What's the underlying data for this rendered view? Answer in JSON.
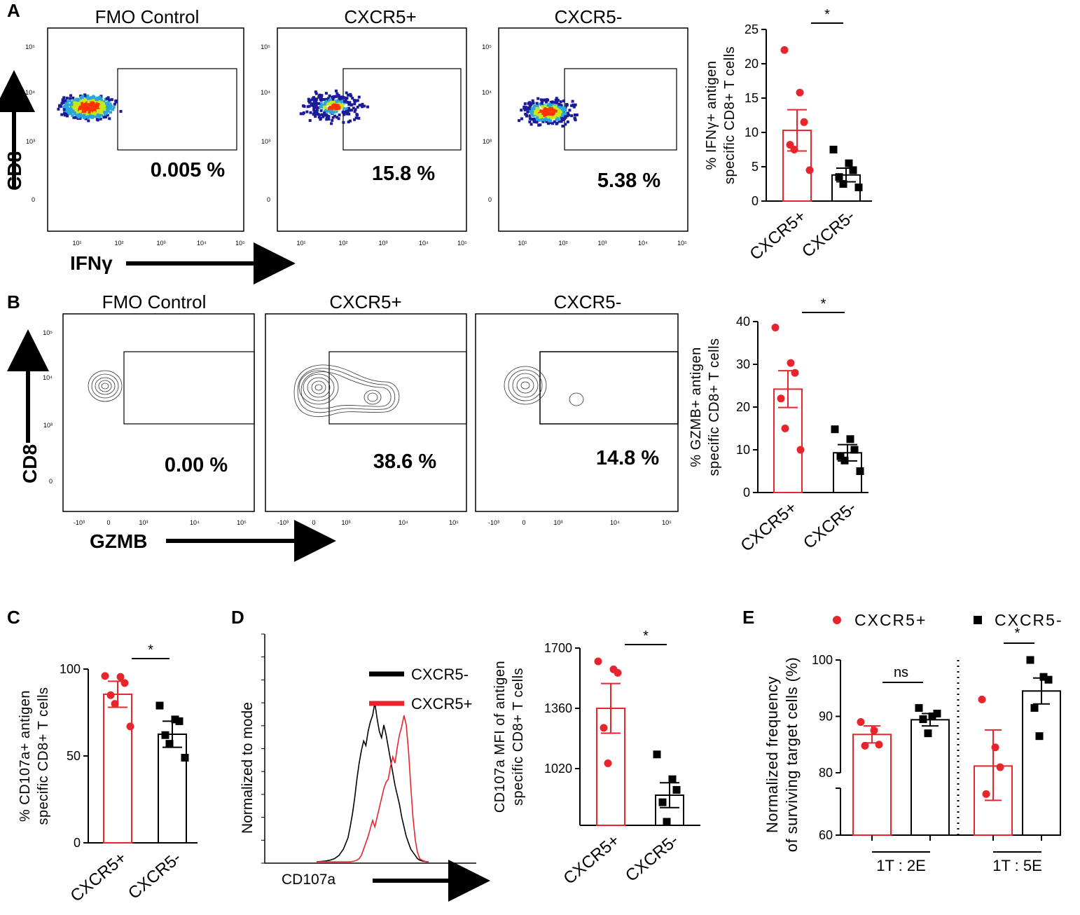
{
  "colors": {
    "red": "#e8252c",
    "black": "#000000",
    "density_low": "#1a1a9a",
    "density_mid": "#2aa7d8",
    "density_hi": "#c8e81a",
    "density_top": "#ff3300"
  },
  "panels": {
    "A": {
      "letter": "A",
      "y_axis_label": "CD8",
      "x_axis_label": "IFNγ",
      "y_ticks": [
        "10⁵",
        "10⁴",
        "10³",
        "0"
      ],
      "x_ticks": [
        "10¹",
        "10²",
        "10³",
        "10⁴",
        "10⁵"
      ],
      "plots": [
        {
          "title": "FMO Control",
          "percent": "0.005 %"
        },
        {
          "title": "CXCR5+",
          "percent": "15.8 %"
        },
        {
          "title": "CXCR5-",
          "percent": "5.38 %"
        }
      ]
    },
    "B": {
      "letter": "B",
      "y_axis_label": "CD8",
      "x_axis_label": "GZMB",
      "y_ticks": [
        "10⁵",
        "10⁴",
        "10³",
        "0"
      ],
      "x_ticks": [
        "-10³",
        "0",
        "10³",
        "10⁴",
        "10⁵"
      ],
      "plots": [
        {
          "title": "FMO Control",
          "percent": "0.00 %"
        },
        {
          "title": "CXCR5+",
          "percent": "38.6 %"
        },
        {
          "title": "CXCR5-",
          "percent": "14.8 %"
        }
      ]
    },
    "C": {
      "letter": "C"
    },
    "D": {
      "letter": "D",
      "hist_ylabel": "Normalized to mode",
      "hist_xlabel": "CD107a",
      "legend": [
        "CXCR5-",
        "CXCR5+"
      ]
    },
    "E": {
      "letter": "E",
      "legend": [
        "CXCR5+",
        "CXCR5-"
      ],
      "group_labels": [
        "1T : 2E",
        "1T : 5E"
      ],
      "ns_label": "ns"
    }
  },
  "chart_data": [
    {
      "id": "A-bar",
      "type": "bar",
      "categories": [
        "CXCR5+",
        "CXCR5-"
      ],
      "ylabel_lines": [
        "% IFNγ+ antigen",
        "specific CD8+ T cells"
      ],
      "ylim": [
        0,
        25
      ],
      "yticks": [
        0,
        5,
        10,
        15,
        20,
        25
      ],
      "means": [
        10.3,
        3.8
      ],
      "sem": [
        3.0,
        1.0
      ],
      "points": [
        [
          22.0,
          15.8,
          11.5,
          8.2,
          7.5,
          4.5
        ],
        [
          7.5,
          5.5,
          4.5,
          3.5,
          2.5,
          2.0
        ]
      ],
      "significance": "*"
    },
    {
      "id": "B-bar",
      "type": "bar",
      "categories": [
        "CXCR5+",
        "CXCR5-"
      ],
      "ylabel_lines": [
        "% GZMB+ antigen",
        "specific CD8+ T cells"
      ],
      "ylim": [
        0,
        40
      ],
      "yticks": [
        0,
        10,
        20,
        30,
        40
      ],
      "means": [
        24.2,
        9.3
      ],
      "sem": [
        4.3,
        1.9
      ],
      "points": [
        [
          38.6,
          30.3,
          28.0,
          22.0,
          15.0,
          10.0
        ],
        [
          14.8,
          12.5,
          10.0,
          8.5,
          7.5,
          5.0
        ]
      ],
      "significance": "*"
    },
    {
      "id": "C-bar",
      "type": "bar",
      "categories": [
        "CXCR5+",
        "CXCR5-"
      ],
      "ylabel_lines": [
        "% CD107a+ antigen",
        "specific CD8+ T cells"
      ],
      "ylim": [
        0,
        100
      ],
      "yticks": [
        0,
        50,
        100
      ],
      "means": [
        85.5,
        62.5
      ],
      "sem": [
        7.5,
        7.5
      ],
      "points": [
        [
          96.0,
          95.5,
          92.0,
          85.0,
          80.0,
          67.0
        ],
        [
          79.0,
          71.0,
          70.0,
          62.0,
          57.0,
          49.0
        ]
      ],
      "significance": "*"
    },
    {
      "id": "D-hist",
      "type": "line",
      "xlabel": "CD107a",
      "ylabel": "Normalized to mode",
      "series": [
        {
          "name": "CXCR5-",
          "x": [
            0,
            4,
            8,
            12,
            16,
            20,
            24,
            28,
            30,
            32,
            34,
            36,
            38,
            40,
            42,
            44,
            46,
            48,
            50,
            52,
            54,
            56,
            58,
            60,
            62,
            64,
            66,
            68,
            70,
            72,
            74,
            76,
            78,
            80,
            82,
            84,
            86,
            88,
            90,
            92,
            94,
            96,
            98,
            100
          ],
          "y": [
            0,
            0.2,
            0.5,
            1,
            2,
            4,
            8,
            15,
            22,
            30,
            40,
            52,
            62,
            70,
            76,
            73,
            82,
            88,
            92,
            100,
            90,
            82,
            78,
            86,
            80,
            72,
            64,
            56,
            48,
            42,
            36,
            28,
            22,
            16,
            12,
            8,
            6,
            4,
            2,
            1,
            0.5,
            0.2,
            0,
            0
          ]
        },
        {
          "name": "CXCR5+",
          "x": [
            0,
            20,
            30,
            34,
            36,
            38,
            40,
            42,
            44,
            46,
            48,
            50,
            52,
            54,
            56,
            58,
            60,
            62,
            64,
            66,
            68,
            70,
            72,
            74,
            76,
            78,
            80,
            82,
            84,
            86,
            88,
            90,
            92,
            94,
            96,
            98,
            100
          ],
          "y": [
            0,
            0,
            0,
            0.5,
            1,
            2,
            4,
            8,
            12,
            16,
            21,
            26,
            22,
            28,
            34,
            40,
            46,
            50,
            52,
            60,
            66,
            62,
            72,
            80,
            85,
            92,
            86,
            70,
            48,
            28,
            14,
            6,
            2,
            1,
            0.5,
            0,
            0
          ]
        }
      ]
    },
    {
      "id": "D-bar",
      "type": "bar",
      "categories": [
        "CXCR5+",
        "CXCR5-"
      ],
      "ylabel_lines": [
        "CD107a MFI of antigen",
        "specific CD8+ T cells"
      ],
      "ylim": [
        700,
        1700
      ],
      "yticks": [
        1020,
        1360,
        1700
      ],
      "means": [
        1360,
        870
      ],
      "sem": [
        140,
        70
      ],
      "points": [
        [
          1625,
          1580,
          1560,
          1250,
          1050
        ],
        [
          1100,
          960,
          900,
          830,
          720
        ]
      ],
      "significance": "*"
    },
    {
      "id": "E-bar",
      "type": "bar",
      "ylabel_lines": [
        "Normalized frequency",
        "of surviving target cells (%)"
      ],
      "ylim": [
        60,
        100
      ],
      "yticks": [
        60,
        80,
        90,
        100
      ],
      "groups": [
        {
          "label": "1T : 2E",
          "series": [
            {
              "name": "CXCR5+",
              "mean": 86.8,
              "sem": 1.5,
              "points": [
                89.0,
                87.5,
                85.0,
                84.8
              ]
            },
            {
              "name": "CXCR5-",
              "mean": 89.4,
              "sem": 1.1,
              "points": [
                91.5,
                90.0,
                90.5,
                89.5,
                87.0
              ]
            }
          ],
          "significance": "ns"
        },
        {
          "label": "1T : 5E",
          "series": [
            {
              "name": "CXCR5+",
              "mean": 81.2,
              "sem": 6.4,
              "points": [
                93.0,
                84.5,
                81.0,
                77.5
              ]
            },
            {
              "name": "CXCR5-",
              "mean": 94.5,
              "sem": 2.3,
              "points": [
                100.0,
                97.0,
                96.5,
                91.5,
                86.5
              ]
            }
          ],
          "significance": "*"
        }
      ]
    }
  ]
}
